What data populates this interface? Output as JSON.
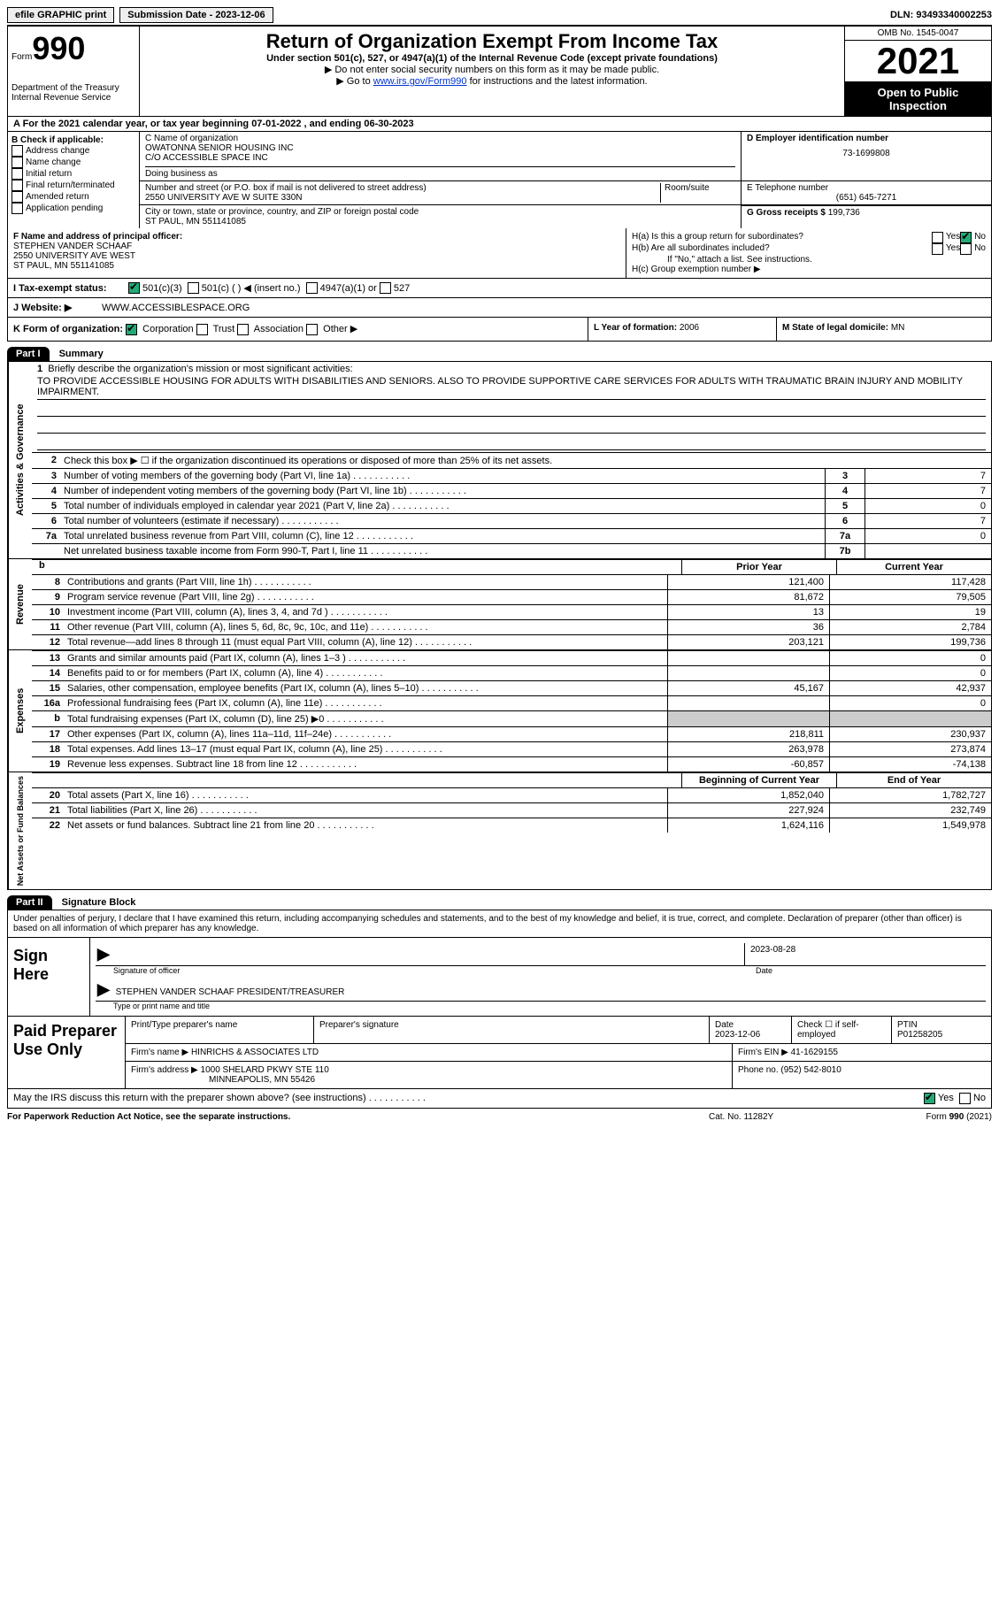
{
  "topbar": {
    "efile": "efile GRAPHIC print",
    "submission": "Submission Date - 2023-12-06",
    "dln": "DLN: 93493340002253"
  },
  "header": {
    "form_label": "Form",
    "form_number": "990",
    "dept": "Department of the Treasury",
    "irs": "Internal Revenue Service",
    "title": "Return of Organization Exempt From Income Tax",
    "subtitle": "Under section 501(c), 527, or 4947(a)(1) of the Internal Revenue Code (except private foundations)",
    "note1": "▶ Do not enter social security numbers on this form as it may be made public.",
    "note2_pre": "▶ Go to ",
    "note2_link": "www.irs.gov/Form990",
    "note2_post": " for instructions and the latest information.",
    "omb": "OMB No. 1545-0047",
    "year": "2021",
    "open": "Open to Public Inspection"
  },
  "rowA": "A For the 2021 calendar year, or tax year beginning 07-01-2022    , and ending 06-30-2023",
  "boxB": {
    "label": "B Check if applicable:",
    "items": [
      "Address change",
      "Name change",
      "Initial return",
      "Final return/terminated",
      "Amended return",
      "Application pending"
    ]
  },
  "boxC": {
    "label": "C Name of organization",
    "name": "OWATONNA SENIOR HOUSING INC",
    "care_of": "C/O ACCESSIBLE SPACE INC",
    "dba_label": "Doing business as",
    "addr_label": "Number and street (or P.O. box if mail is not delivered to street address)",
    "suite_label": "Room/suite",
    "addr": "2550 UNIVERSITY AVE W SUITE 330N",
    "city_label": "City or town, state or province, country, and ZIP or foreign postal code",
    "city": "ST PAUL, MN  551141085"
  },
  "boxD": {
    "label": "D Employer identification number",
    "value": "73-1699808"
  },
  "boxE": {
    "label": "E Telephone number",
    "value": "(651) 645-7271"
  },
  "boxG": {
    "label": "G Gross receipts $",
    "value": "199,736"
  },
  "boxF": {
    "label": "F Name and address of principal officer:",
    "name": "STEPHEN VANDER SCHAAF",
    "addr": "2550 UNIVERSITY AVE WEST",
    "city": "ST PAUL, MN  551141085"
  },
  "boxH": {
    "ha": "H(a)  Is this a group return for subordinates?",
    "hb": "H(b)  Are all subordinates included?",
    "hb_note": "If \"No,\" attach a list. See instructions.",
    "hc": "H(c)  Group exemption number ▶"
  },
  "rowI": {
    "label": "I  Tax-exempt status:",
    "opt1": "501(c)(3)",
    "opt2": "501(c) (  ) ◀ (insert no.)",
    "opt3": "4947(a)(1) or",
    "opt4": "527"
  },
  "rowJ": {
    "label": "J  Website: ▶",
    "value": "WWW.ACCESSIBLESPACE.ORG"
  },
  "rowK": {
    "label": "K Form of organization:",
    "opts": [
      "Corporation",
      "Trust",
      "Association",
      "Other ▶"
    ]
  },
  "rowL": {
    "label": "L Year of formation:",
    "value": "2006"
  },
  "rowM": {
    "label": "M State of legal domicile:",
    "value": "MN"
  },
  "part1": {
    "hdr": "Part I",
    "title": "Summary"
  },
  "summary": {
    "activities_label": "Activities & Governance",
    "line1_label": "Briefly describe the organization's mission or most significant activities:",
    "mission": "TO PROVIDE ACCESSIBLE HOUSING FOR ADULTS WITH DISABILITIES AND SENIORS. ALSO TO PROVIDE SUPPORTIVE CARE SERVICES FOR ADULTS WITH TRAUMATIC BRAIN INJURY AND MOBILITY IMPAIRMENT.",
    "line2": "Check this box ▶ ☐  if the organization discontinued its operations or disposed of more than 25% of its net assets.",
    "lines": [
      {
        "n": "3",
        "t": "Number of voting members of the governing body (Part VI, line 1a)",
        "box": "3",
        "v": "7"
      },
      {
        "n": "4",
        "t": "Number of independent voting members of the governing body (Part VI, line 1b)",
        "box": "4",
        "v": "7"
      },
      {
        "n": "5",
        "t": "Total number of individuals employed in calendar year 2021 (Part V, line 2a)",
        "box": "5",
        "v": "0"
      },
      {
        "n": "6",
        "t": "Total number of volunteers (estimate if necessary)",
        "box": "6",
        "v": "7"
      },
      {
        "n": "7a",
        "t": "Total unrelated business revenue from Part VIII, column (C), line 12",
        "box": "7a",
        "v": "0"
      },
      {
        "n": "",
        "t": "Net unrelated business taxable income from Form 990-T, Part I, line 11",
        "box": "7b",
        "v": ""
      }
    ]
  },
  "revenue": {
    "label": "Revenue",
    "hdr_prior": "Prior Year",
    "hdr_curr": "Current Year",
    "lines": [
      {
        "n": "8",
        "t": "Contributions and grants (Part VIII, line 1h)",
        "c1": "121,400",
        "c2": "117,428"
      },
      {
        "n": "9",
        "t": "Program service revenue (Part VIII, line 2g)",
        "c1": "81,672",
        "c2": "79,505"
      },
      {
        "n": "10",
        "t": "Investment income (Part VIII, column (A), lines 3, 4, and 7d )",
        "c1": "13",
        "c2": "19"
      },
      {
        "n": "11",
        "t": "Other revenue (Part VIII, column (A), lines 5, 6d, 8c, 9c, 10c, and 11e)",
        "c1": "36",
        "c2": "2,784"
      },
      {
        "n": "12",
        "t": "Total revenue—add lines 8 through 11 (must equal Part VIII, column (A), line 12)",
        "c1": "203,121",
        "c2": "199,736"
      }
    ]
  },
  "expenses": {
    "label": "Expenses",
    "lines": [
      {
        "n": "13",
        "t": "Grants and similar amounts paid (Part IX, column (A), lines 1–3 )",
        "c1": "",
        "c2": "0"
      },
      {
        "n": "14",
        "t": "Benefits paid to or for members (Part IX, column (A), line 4)",
        "c1": "",
        "c2": "0"
      },
      {
        "n": "15",
        "t": "Salaries, other compensation, employee benefits (Part IX, column (A), lines 5–10)",
        "c1": "45,167",
        "c2": "42,937"
      },
      {
        "n": "16a",
        "t": "Professional fundraising fees (Part IX, column (A), line 11e)",
        "c1": "",
        "c2": "0"
      },
      {
        "n": "b",
        "t": "Total fundraising expenses (Part IX, column (D), line 25) ▶0",
        "c1": "grey",
        "c2": "grey"
      },
      {
        "n": "17",
        "t": "Other expenses (Part IX, column (A), lines 11a–11d, 11f–24e)",
        "c1": "218,811",
        "c2": "230,937"
      },
      {
        "n": "18",
        "t": "Total expenses. Add lines 13–17 (must equal Part IX, column (A), line 25)",
        "c1": "263,978",
        "c2": "273,874"
      },
      {
        "n": "19",
        "t": "Revenue less expenses. Subtract line 18 from line 12",
        "c1": "-60,857",
        "c2": "-74,138"
      }
    ]
  },
  "netassets": {
    "label": "Net Assets or Fund Balances",
    "hdr_prior": "Beginning of Current Year",
    "hdr_curr": "End of Year",
    "lines": [
      {
        "n": "20",
        "t": "Total assets (Part X, line 16)",
        "c1": "1,852,040",
        "c2": "1,782,727"
      },
      {
        "n": "21",
        "t": "Total liabilities (Part X, line 26)",
        "c1": "227,924",
        "c2": "232,749"
      },
      {
        "n": "22",
        "t": "Net assets or fund balances. Subtract line 21 from line 20",
        "c1": "1,624,116",
        "c2": "1,549,978"
      }
    ]
  },
  "part2": {
    "hdr": "Part II",
    "title": "Signature Block"
  },
  "sig": {
    "declaration": "Under penalties of perjury, I declare that I have examined this return, including accompanying schedules and statements, and to the best of my knowledge and belief, it is true, correct, and complete. Declaration of preparer (other than officer) is based on all information of which preparer has any knowledge.",
    "sign_here": "Sign Here",
    "sig_officer": "Signature of officer",
    "date": "2023-08-28",
    "date_label": "Date",
    "name_title": "STEPHEN VANDER SCHAAF  PRESIDENT/TREASURER",
    "type_label": "Type or print name and title"
  },
  "prep": {
    "label": "Paid Preparer Use Only",
    "print_label": "Print/Type preparer's name",
    "sig_label": "Preparer's signature",
    "date_label": "Date",
    "date": "2023-12-06",
    "check_label": "Check ☐ if self-employed",
    "ptin_label": "PTIN",
    "ptin": "P01258205",
    "firm_name_label": "Firm's name    ▶",
    "firm_name": "HINRICHS & ASSOCIATES LTD",
    "firm_ein_label": "Firm's EIN ▶",
    "firm_ein": "41-1629155",
    "firm_addr_label": "Firm's address ▶",
    "firm_addr": "1000 SHELARD PKWY STE 110",
    "firm_city": "MINNEAPOLIS, MN  55426",
    "phone_label": "Phone no.",
    "phone": "(952) 542-8010"
  },
  "may_irs": "May the IRS discuss this return with the preparer shown above? (see instructions)",
  "footer": {
    "left": "For Paperwork Reduction Act Notice, see the separate instructions.",
    "mid": "Cat. No. 11282Y",
    "right": "Form 990 (2021)"
  }
}
